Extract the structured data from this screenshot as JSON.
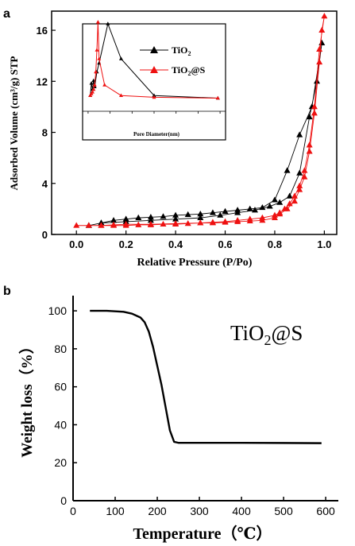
{
  "panel_labels": [
    "a",
    "b"
  ],
  "chart_data": [
    {
      "type": "scatter",
      "panel": "a",
      "xlabel": "Relative Pressure (P/Po)",
      "ylabel": "Adsorbed Volume (cm³/g) STP",
      "xlim": [
        -0.1,
        1.05
      ],
      "ylim": [
        0,
        17.5
      ],
      "xticks": [
        0.0,
        0.2,
        0.4,
        0.6,
        0.8,
        1.0
      ],
      "xtick_labels": [
        "0.0",
        "0.2",
        "0.4",
        "0.6",
        "0.8",
        "1.0"
      ],
      "yticks": [
        0,
        4,
        8,
        12,
        16
      ],
      "ytick_labels": [
        "0",
        "4",
        "8",
        "12",
        "16"
      ],
      "legend_placement": "inset top-right",
      "series": [
        {
          "name": "TiO2",
          "color": "#000000",
          "marker": "triangle",
          "x": [
            0.05,
            0.1,
            0.15,
            0.2,
            0.25,
            0.3,
            0.35,
            0.4,
            0.45,
            0.5,
            0.55,
            0.6,
            0.65,
            0.7,
            0.75,
            0.8,
            0.85,
            0.9,
            0.95,
            0.99,
            0.97,
            0.94,
            0.9,
            0.86,
            0.82,
            0.78,
            0.72,
            0.65,
            0.58,
            0.5,
            0.4,
            0.3,
            0.2,
            0.1,
            0.05
          ],
          "y": [
            0.7,
            0.9,
            1.1,
            1.2,
            1.3,
            1.35,
            1.4,
            1.5,
            1.55,
            1.6,
            1.7,
            1.8,
            1.9,
            2.0,
            2.1,
            2.7,
            5.0,
            7.8,
            10.0,
            15.0,
            12.0,
            9.2,
            4.8,
            3.0,
            2.5,
            2.2,
            1.9,
            1.7,
            1.5,
            1.3,
            1.2,
            1.1,
            1.0,
            0.9,
            0.7
          ]
        },
        {
          "name": "TiO2@S",
          "color": "#ee1111",
          "marker": "triangle",
          "x": [
            0.0,
            0.05,
            0.1,
            0.15,
            0.2,
            0.3,
            0.4,
            0.5,
            0.55,
            0.6,
            0.65,
            0.7,
            0.75,
            0.8,
            0.82,
            0.85,
            0.88,
            0.9,
            0.92,
            0.94,
            0.96,
            0.98,
            0.99,
            1.0,
            0.98,
            0.96,
            0.94,
            0.92,
            0.9,
            0.88,
            0.86,
            0.84,
            0.82,
            0.8,
            0.75,
            0.7,
            0.65,
            0.6,
            0.55,
            0.5,
            0.45,
            0.4,
            0.35,
            0.3,
            0.25,
            0.2,
            0.15,
            0.1
          ],
          "y": [
            0.7,
            0.7,
            0.7,
            0.75,
            0.8,
            0.8,
            0.85,
            0.9,
            0.9,
            0.95,
            1.0,
            1.05,
            1.1,
            1.3,
            1.6,
            2.0,
            2.6,
            3.5,
            4.5,
            6.5,
            9.5,
            13.5,
            16.0,
            17.1,
            14.5,
            10.0,
            7.0,
            5.0,
            3.8,
            3.0,
            2.4,
            2.0,
            1.7,
            1.5,
            1.3,
            1.2,
            1.1,
            1.0,
            0.95,
            0.9,
            0.85,
            0.8,
            0.8,
            0.75,
            0.75,
            0.7,
            0.7,
            0.7
          ]
        }
      ],
      "inset": {
        "type": "line",
        "xlabel": "Pore Diameter(nm)",
        "xlim": [
          -5,
          125
        ],
        "ylim": [
          0,
          1
        ],
        "series": [
          {
            "name": "TiO2",
            "color": "#000000",
            "x": [
              2,
              3,
              4,
              5,
              6,
              8,
              10,
              18,
              30,
              60,
              118
            ],
            "y": [
              0.18,
              0.32,
              0.25,
              0.35,
              0.28,
              0.45,
              0.55,
              1.0,
              0.6,
              0.18,
              0.15
            ]
          },
          {
            "name": "TiO2@S",
            "color": "#ee1111",
            "x": [
              2,
              3,
              4,
              5,
              6,
              7,
              8,
              9,
              10,
              15,
              30,
              60,
              118
            ],
            "y": [
              0.18,
              0.2,
              0.22,
              0.25,
              0.3,
              0.45,
              0.7,
              1.02,
              0.6,
              0.3,
              0.18,
              0.16,
              0.15
            ]
          }
        ]
      }
    },
    {
      "type": "line",
      "panel": "b",
      "xlabel": "Temperature（℃）",
      "ylabel": "Weight loss（%）",
      "annotation": "TiO2@S",
      "xlim": [
        0,
        630
      ],
      "ylim": [
        0,
        108
      ],
      "xticks": [
        0,
        100,
        200,
        300,
        400,
        500,
        600
      ],
      "xtick_labels": [
        "0",
        "100",
        "200",
        "300",
        "400",
        "500",
        "600"
      ],
      "yticks": [
        0,
        20,
        40,
        60,
        80,
        100
      ],
      "ytick_labels": [
        "0",
        "20",
        "40",
        "60",
        "80",
        "100"
      ],
      "series": [
        {
          "name": "TiO2@S",
          "color": "#000000",
          "x": [
            40,
            80,
            120,
            140,
            160,
            170,
            180,
            190,
            200,
            210,
            220,
            230,
            240,
            250,
            300,
            400,
            500,
            590
          ],
          "y": [
            100,
            100,
            99.5,
            98.5,
            96.5,
            94,
            89,
            81,
            71,
            61,
            49,
            37,
            31,
            30.5,
            30.5,
            30.5,
            30.4,
            30.3
          ]
        }
      ]
    }
  ]
}
